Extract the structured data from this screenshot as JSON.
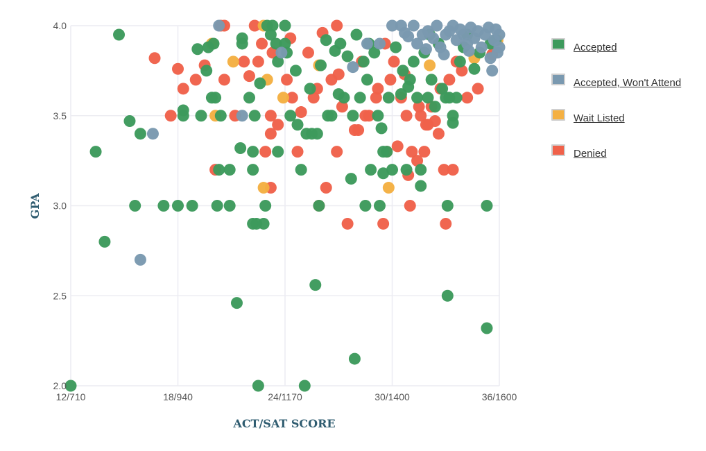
{
  "chart_data": {
    "type": "scatter",
    "xlabel": "ACT/SAT SCORE",
    "ylabel": "GPA",
    "x_ticks": [
      "12/710",
      "18/940",
      "24/1170",
      "30/1400",
      "36/1600"
    ],
    "x_tick_act_values": [
      12,
      18,
      24,
      30,
      36
    ],
    "xlim": [
      12,
      36
    ],
    "y_ticks": [
      "2.0",
      "2.5",
      "3.0",
      "3.5",
      "4.0"
    ],
    "ylim": [
      2.0,
      4.0
    ],
    "grid": true,
    "legend_position": "right",
    "series": [
      {
        "name": "Accepted",
        "color": "#3d9a5c",
        "points": [
          [
            12.0,
            2.0
          ],
          [
            13.4,
            3.3
          ],
          [
            13.9,
            2.8
          ],
          [
            14.7,
            3.95
          ],
          [
            15.3,
            3.47
          ],
          [
            15.6,
            3.0
          ],
          [
            15.9,
            3.4
          ],
          [
            17.2,
            3.0
          ],
          [
            18.0,
            3.0
          ],
          [
            18.3,
            3.53
          ],
          [
            18.3,
            3.5
          ],
          [
            18.8,
            3.0
          ],
          [
            19.1,
            3.87
          ],
          [
            19.3,
            3.5
          ],
          [
            19.6,
            3.75
          ],
          [
            19.7,
            3.88
          ],
          [
            19.9,
            3.6
          ],
          [
            20.0,
            3.9
          ],
          [
            20.1,
            3.6
          ],
          [
            20.2,
            3.0
          ],
          [
            20.3,
            3.2
          ],
          [
            20.4,
            3.5
          ],
          [
            20.9,
            3.0
          ],
          [
            20.9,
            3.2
          ],
          [
            21.3,
            2.46
          ],
          [
            21.5,
            3.32
          ],
          [
            21.6,
            3.93
          ],
          [
            21.6,
            3.9
          ],
          [
            22.0,
            3.6
          ],
          [
            22.3,
            3.5
          ],
          [
            22.2,
            3.3
          ],
          [
            22.2,
            3.2
          ],
          [
            22.2,
            2.9
          ],
          [
            22.4,
            2.9
          ],
          [
            22.5,
            2.0
          ],
          [
            22.6,
            3.68
          ],
          [
            22.8,
            2.9
          ],
          [
            22.9,
            3.0
          ],
          [
            23.0,
            4.0
          ],
          [
            23.2,
            3.95
          ],
          [
            23.3,
            4.0
          ],
          [
            23.5,
            3.9
          ],
          [
            23.6,
            3.3
          ],
          [
            23.6,
            3.8
          ],
          [
            24.0,
            4.0
          ],
          [
            24.0,
            3.9
          ],
          [
            24.1,
            3.85
          ],
          [
            24.3,
            3.5
          ],
          [
            24.6,
            3.75
          ],
          [
            24.9,
            3.2
          ],
          [
            25.2,
            3.4
          ],
          [
            25.4,
            3.65
          ],
          [
            25.5,
            3.4
          ],
          [
            25.1,
            2.0
          ],
          [
            25.8,
            3.4
          ],
          [
            25.9,
            3.0
          ],
          [
            25.7,
            2.56
          ],
          [
            26.3,
            3.92
          ],
          [
            26.4,
            3.5
          ],
          [
            26.8,
            3.86
          ],
          [
            27.0,
            3.62
          ],
          [
            27.1,
            3.9
          ],
          [
            27.3,
            3.6
          ],
          [
            27.7,
            3.15
          ],
          [
            27.8,
            3.5
          ],
          [
            27.9,
            2.15
          ],
          [
            28.0,
            3.95
          ],
          [
            28.2,
            3.6
          ],
          [
            28.4,
            3.8
          ],
          [
            28.5,
            3.0
          ],
          [
            28.6,
            3.7
          ],
          [
            28.7,
            3.9
          ],
          [
            28.8,
            3.2
          ],
          [
            29.0,
            3.85
          ],
          [
            29.2,
            3.5
          ],
          [
            29.3,
            3.0
          ],
          [
            29.4,
            3.43
          ],
          [
            29.5,
            3.3
          ],
          [
            29.5,
            3.18
          ],
          [
            29.7,
            3.3
          ],
          [
            29.8,
            3.6
          ],
          [
            30.0,
            3.2
          ],
          [
            30.2,
            3.88
          ],
          [
            30.5,
            3.62
          ],
          [
            30.6,
            3.75
          ],
          [
            30.8,
            3.2
          ],
          [
            31.0,
            3.7
          ],
          [
            31.2,
            3.8
          ],
          [
            31.4,
            3.6
          ],
          [
            31.6,
            3.2
          ],
          [
            31.6,
            3.11
          ],
          [
            31.8,
            3.85
          ],
          [
            32.0,
            3.6
          ],
          [
            32.2,
            3.7
          ],
          [
            32.4,
            3.55
          ],
          [
            32.6,
            3.9
          ],
          [
            32.8,
            3.65
          ],
          [
            33.0,
            3.6
          ],
          [
            33.1,
            3.0
          ],
          [
            33.1,
            2.5
          ],
          [
            33.2,
            3.6
          ],
          [
            33.4,
            3.5
          ],
          [
            33.4,
            3.46
          ],
          [
            33.6,
            3.6
          ],
          [
            33.8,
            3.8
          ],
          [
            34.0,
            3.88
          ],
          [
            34.2,
            3.95
          ],
          [
            34.6,
            3.76
          ],
          [
            35.3,
            3.0
          ],
          [
            35.3,
            2.32
          ],
          [
            35.5,
            3.9
          ],
          [
            35.8,
            3.92
          ],
          [
            26.6,
            3.5
          ],
          [
            27.5,
            3.83
          ],
          [
            30.9,
            3.66
          ],
          [
            32.1,
            3.95
          ],
          [
            34.9,
            3.85
          ],
          [
            24.7,
            3.45
          ],
          [
            26.0,
            3.78
          ]
        ]
      },
      {
        "name": "Accepted, Won't Attend",
        "color": "#7a99b0",
        "points": [
          [
            15.9,
            2.7
          ],
          [
            16.6,
            3.4
          ],
          [
            20.3,
            4.0
          ],
          [
            21.6,
            3.5
          ],
          [
            23.8,
            3.85
          ],
          [
            27.8,
            3.77
          ],
          [
            28.6,
            3.9
          ],
          [
            29.3,
            3.9
          ],
          [
            30.0,
            4.0
          ],
          [
            30.5,
            4.0
          ],
          [
            30.7,
            3.96
          ],
          [
            30.9,
            3.94
          ],
          [
            31.2,
            4.0
          ],
          [
            31.4,
            3.9
          ],
          [
            31.7,
            3.95
          ],
          [
            32.0,
            3.97
          ],
          [
            32.3,
            3.93
          ],
          [
            32.5,
            4.0
          ],
          [
            32.7,
            3.88
          ],
          [
            32.9,
            3.84
          ],
          [
            33.2,
            3.97
          ],
          [
            33.4,
            4.0
          ],
          [
            33.6,
            3.92
          ],
          [
            33.8,
            3.98
          ],
          [
            34.0,
            3.95
          ],
          [
            34.2,
            3.9
          ],
          [
            34.4,
            3.99
          ],
          [
            34.6,
            3.93
          ],
          [
            34.8,
            3.97
          ],
          [
            35.0,
            3.88
          ],
          [
            35.2,
            3.95
          ],
          [
            35.4,
            3.99
          ],
          [
            35.5,
            3.82
          ],
          [
            35.6,
            3.75
          ],
          [
            35.7,
            3.92
          ],
          [
            35.8,
            3.98
          ],
          [
            35.9,
            3.85
          ],
          [
            36.0,
            3.95
          ],
          [
            36.0,
            3.88
          ],
          [
            34.3,
            3.86
          ],
          [
            33.0,
            3.95
          ],
          [
            31.9,
            3.87
          ]
        ]
      },
      {
        "name": "Wait Listed",
        "color": "#f4b042",
        "points": [
          [
            19.9,
            3.9
          ],
          [
            20.1,
            3.5
          ],
          [
            21.1,
            3.8
          ],
          [
            22.8,
            4.0
          ],
          [
            22.8,
            3.1
          ],
          [
            23.0,
            3.7
          ],
          [
            23.9,
            3.6
          ],
          [
            25.9,
            3.78
          ],
          [
            29.8,
            3.1
          ],
          [
            32.1,
            3.78
          ],
          [
            34.6,
            3.82
          ],
          [
            35.9,
            3.92
          ]
        ]
      },
      {
        "name": "Denied",
        "color": "#f0614a",
        "points": [
          [
            16.7,
            3.82
          ],
          [
            17.6,
            3.5
          ],
          [
            18.0,
            3.76
          ],
          [
            18.3,
            3.65
          ],
          [
            19.0,
            3.7
          ],
          [
            19.5,
            3.78
          ],
          [
            20.1,
            3.2
          ],
          [
            20.4,
            4.0
          ],
          [
            20.6,
            3.7
          ],
          [
            21.2,
            3.5
          ],
          [
            21.7,
            3.8
          ],
          [
            22.0,
            3.72
          ],
          [
            22.3,
            4.0
          ],
          [
            22.7,
            3.9
          ],
          [
            23.2,
            3.5
          ],
          [
            23.2,
            3.4
          ],
          [
            23.2,
            3.1
          ],
          [
            23.3,
            3.85
          ],
          [
            23.6,
            3.45
          ],
          [
            24.1,
            3.7
          ],
          [
            24.4,
            3.6
          ],
          [
            24.7,
            3.3
          ],
          [
            25.3,
            3.85
          ],
          [
            25.6,
            3.6
          ],
          [
            25.9,
            3.0
          ],
          [
            26.3,
            3.1
          ],
          [
            26.6,
            3.7
          ],
          [
            26.9,
            3.3
          ],
          [
            27.2,
            3.55
          ],
          [
            27.5,
            2.9
          ],
          [
            27.9,
            3.42
          ],
          [
            28.3,
            3.8
          ],
          [
            28.7,
            3.5
          ],
          [
            29.1,
            3.6
          ],
          [
            29.5,
            2.9
          ],
          [
            29.7,
            3.3
          ],
          [
            29.9,
            3.7
          ],
          [
            30.3,
            3.33
          ],
          [
            30.5,
            3.6
          ],
          [
            30.9,
            3.17
          ],
          [
            31.1,
            3.3
          ],
          [
            31.0,
            3.0
          ],
          [
            31.4,
            3.25
          ],
          [
            31.6,
            3.5
          ],
          [
            31.8,
            3.3
          ],
          [
            32.0,
            3.45
          ],
          [
            32.2,
            3.55
          ],
          [
            32.4,
            3.47
          ],
          [
            32.6,
            3.4
          ],
          [
            32.9,
            3.2
          ],
          [
            33.0,
            2.9
          ],
          [
            33.2,
            3.7
          ],
          [
            33.4,
            3.2
          ],
          [
            33.6,
            3.8
          ],
          [
            34.2,
            3.6
          ],
          [
            34.8,
            3.65
          ],
          [
            35.6,
            3.84
          ],
          [
            20.6,
            4.0
          ],
          [
            24.3,
            3.93
          ],
          [
            25.8,
            3.65
          ],
          [
            26.1,
            3.96
          ],
          [
            27.0,
            3.73
          ],
          [
            28.5,
            3.5
          ],
          [
            29.2,
            3.65
          ],
          [
            30.1,
            3.8
          ],
          [
            30.8,
            3.5
          ],
          [
            31.5,
            3.55
          ],
          [
            32.7,
            3.65
          ],
          [
            33.9,
            3.75
          ],
          [
            22.5,
            3.8
          ],
          [
            26.9,
            4.0
          ],
          [
            28.1,
            3.42
          ],
          [
            29.6,
            3.9
          ],
          [
            30.7,
            3.73
          ],
          [
            31.9,
            3.45
          ],
          [
            24.9,
            3.52
          ],
          [
            22.9,
            3.3
          ]
        ]
      }
    ]
  },
  "legend": {
    "items": [
      {
        "label": "Accepted",
        "color": "#3d9a5c"
      },
      {
        "label": "Accepted, Won't Attend",
        "color": "#7a99b0"
      },
      {
        "label": "Wait Listed",
        "color": "#f4b042"
      },
      {
        "label": "Denied",
        "color": "#f0614a"
      }
    ]
  }
}
